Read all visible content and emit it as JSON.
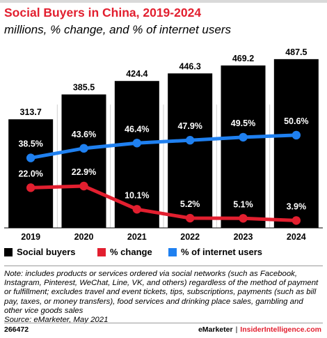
{
  "header": {
    "title": "Social Buyers in China, 2019-2024",
    "subtitle": "millions, % change, and % of internet users"
  },
  "colors": {
    "bar": "#000000",
    "change": "#e21f2f",
    "share": "#1f80f0",
    "label_bg": "#000000"
  },
  "chart_data": {
    "type": "bar",
    "title": "Social Buyers in China, 2019-2024",
    "subtitle": "millions, % change, and % of internet users",
    "categories": [
      "2019",
      "2020",
      "2021",
      "2022",
      "2023",
      "2024"
    ],
    "series": [
      {
        "name": "Social buyers",
        "type": "bar",
        "values": [
          313.7,
          385.5,
          424.4,
          446.3,
          469.2,
          487.5
        ],
        "labels": [
          "313.7",
          "385.5",
          "424.4",
          "446.3",
          "469.2",
          "487.5"
        ]
      },
      {
        "name": "% change",
        "type": "line",
        "values": [
          22.0,
          22.9,
          10.1,
          5.2,
          5.1,
          3.9
        ],
        "labels": [
          "22.0%",
          "22.9%",
          "10.1%",
          "5.2%",
          "5.1%",
          "3.9%"
        ]
      },
      {
        "name": "% of internet users",
        "type": "line",
        "values": [
          38.5,
          43.6,
          46.4,
          47.9,
          49.5,
          50.6
        ],
        "labels": [
          "38.5%",
          "43.6%",
          "46.4%",
          "47.9%",
          "49.5%",
          "50.6%"
        ]
      }
    ],
    "legend": "bottom"
  },
  "note": {
    "text": "Note: includes products or services ordered via social networks (such as Facebook, Instagram, Pinterest, WeChat, Line, VK, and others) regardless of the method of payment or fulfillment; excludes travel and event tickets, tips, subscriptions, payments (such as bill pay, taxes, or money transfers), food services and drinking place sales, gambling and other vice goods sales",
    "source": "Source: eMarketer, May 2021"
  },
  "footer": {
    "id": "266472",
    "brand_emarketer": "eMarketer",
    "separator": "|",
    "brand_ii": "InsiderIntelligence.com"
  }
}
